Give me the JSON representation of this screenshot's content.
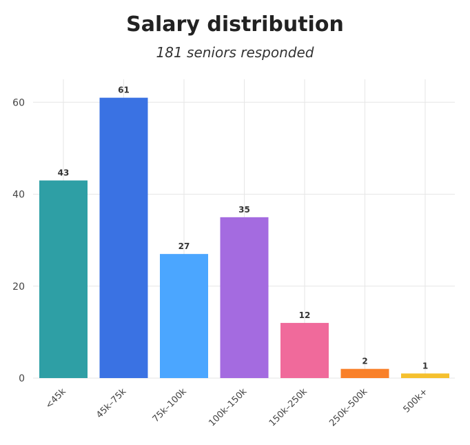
{
  "chart_data": {
    "type": "bar",
    "title": "Salary distribution",
    "subtitle": "181 seniors responded",
    "xlabel": "",
    "ylabel": "",
    "categories": [
      "<45k",
      "45k–75k",
      "75k–100k",
      "100k–150k",
      "150k–250k",
      "250k–500k",
      "500k+"
    ],
    "values": [
      43,
      61,
      27,
      35,
      12,
      2,
      1
    ],
    "data_labels": [
      "43",
      "61",
      "27",
      "35",
      "12",
      "2",
      "1"
    ],
    "colors": [
      "#2E9FA5",
      "#3A72E3",
      "#4BA6FF",
      "#A46BE0",
      "#F06A9B",
      "#F98029",
      "#F5C02E"
    ],
    "ylim": [
      0,
      65
    ],
    "yticks": [
      0,
      20,
      40,
      60
    ],
    "ytick_labels": [
      "0",
      "20",
      "40",
      "60"
    ],
    "grid": true,
    "legend": "none"
  }
}
